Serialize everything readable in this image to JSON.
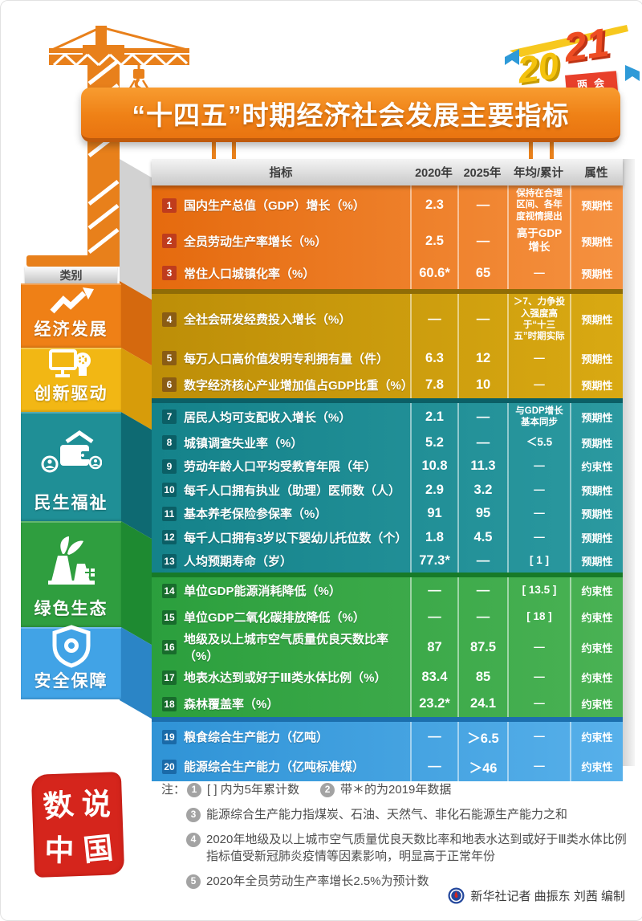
{
  "logo": {
    "year_first": "20",
    "year_second": "21",
    "badge": "两会"
  },
  "banner": {
    "title": "“十四五”时期经济社会发展主要指标"
  },
  "sidebar": {
    "header": "类别",
    "categories": [
      {
        "label": "经济发展",
        "icon": "trend-up-icon",
        "color": "#ef8016",
        "flap": "#d5690e"
      },
      {
        "label": "创新驱动",
        "icon": "innovation-icon",
        "color": "#f2b714",
        "flap": "#d79c0a"
      },
      {
        "label": "民生福祉",
        "icon": "wallet-people-icon",
        "color": "#1f8f96",
        "flap": "#0e6a72"
      },
      {
        "label": "绿色生态",
        "icon": "eco-plant-icon",
        "color": "#2f9e3f",
        "flap": "#1e8a31"
      },
      {
        "label": "安全保障",
        "icon": "shield-icon",
        "color": "#41a3e6",
        "flap": "#2b85c6"
      }
    ]
  },
  "table": {
    "headers": [
      "指标",
      "2020年",
      "2025年",
      "年均/累计",
      "属性"
    ],
    "groups": [
      {
        "key": "economic",
        "category": "经济发展",
        "colors": {
          "from": "#e56a0e",
          "to": "#f59140",
          "dark": "#b5520a",
          "badge": "#bf3c1d"
        },
        "rows": [
          {
            "num": "1",
            "label": "国内生产总值（GDP）增长（%）",
            "v2020": "2.3",
            "v2025": "—",
            "annual": "保持在合理区间、各年度视情提出",
            "attr": "预期性"
          },
          {
            "num": "2",
            "label": "全员劳动生产率增长（%）",
            "v2020": "2.5",
            "v2025": "—",
            "annual": "高于GDP增长",
            "attr": "预期性"
          },
          {
            "num": "3",
            "label": "常住人口城镇化率（%）",
            "v2020": "60.6*",
            "v2025": "65",
            "annual": "—",
            "attr": "预期性"
          }
        ]
      },
      {
        "key": "innovation",
        "category": "创新驱动",
        "colors": {
          "from": "#bd8e08",
          "to": "#d9a912",
          "dark": "#8f6c06",
          "badge": "#8a5c14"
        },
        "rows": [
          {
            "num": "4",
            "label": "全社会研发经费投入增长（%）",
            "v2020": "—",
            "v2025": "—",
            "annual": "＞7、力争投入强度高于“十三五”时期实际",
            "attr": "预期性"
          },
          {
            "num": "5",
            "label": "每万人口高价值发明专利拥有量（件）",
            "v2020": "6.3",
            "v2025": "12",
            "annual": "—",
            "attr": "预期性"
          },
          {
            "num": "6",
            "label": "数字经济核心产业增加值占GDP比重（%）",
            "v2020": "7.8",
            "v2025": "10",
            "annual": "—",
            "attr": "预期性"
          }
        ]
      },
      {
        "key": "livelihood",
        "category": "民生福祉",
        "colors": {
          "from": "#14828a",
          "to": "#2b99a0",
          "dark": "#0b5f66",
          "badge": "#0b5f66"
        },
        "rows": [
          {
            "num": "7",
            "label": "居民人均可支配收入增长（%）",
            "v2020": "2.1",
            "v2025": "—",
            "annual": "与GDP增长基本同步",
            "attr": "预期性"
          },
          {
            "num": "8",
            "label": "城镇调查失业率（%）",
            "v2020": "5.2",
            "v2025": "—",
            "annual": "＜5.5",
            "attr": "预期性"
          },
          {
            "num": "9",
            "label": "劳动年龄人口平均受教育年限（年）",
            "v2020": "10.8",
            "v2025": "11.3",
            "annual": "—",
            "attr": "约束性"
          },
          {
            "num": "10",
            "label": "每千人口拥有执业（助理）医师数（人）",
            "v2020": "2.9",
            "v2025": "3.2",
            "annual": "—",
            "attr": "预期性"
          },
          {
            "num": "11",
            "label": "基本养老保险参保率（%）",
            "v2020": "91",
            "v2025": "95",
            "annual": "—",
            "attr": "预期性"
          },
          {
            "num": "12",
            "label": "每千人口拥有3岁以下婴幼儿托位数（个）",
            "v2020": "1.8",
            "v2025": "4.5",
            "annual": "—",
            "attr": "预期性"
          },
          {
            "num": "13",
            "label": "人均预期寿命（岁）",
            "v2020": "77.3*",
            "v2025": "—",
            "annual": "[ 1 ]",
            "attr": "预期性"
          }
        ]
      },
      {
        "key": "ecology",
        "category": "绿色生态",
        "colors": {
          "from": "#2b9f3d",
          "to": "#4ab254",
          "dark": "#177a28",
          "badge": "#186c2c"
        },
        "rows": [
          {
            "num": "14",
            "label": "单位GDP能源消耗降低（%）",
            "v2020": "—",
            "v2025": "—",
            "annual": "[ 13.5 ]",
            "attr": "约束性"
          },
          {
            "num": "15",
            "label": "单位GDP二氧化碳排放降低（%）",
            "v2020": "—",
            "v2025": "—",
            "annual": "[ 18 ]",
            "attr": "约束性"
          },
          {
            "num": "16",
            "label": "地级及以上城市空气质量优良天数比率（%）",
            "v2020": "87",
            "v2025": "87.5",
            "annual": "—",
            "attr": "约束性"
          },
          {
            "num": "17",
            "label": "地表水达到或好于Ⅲ类水体比例（%）",
            "v2020": "83.4",
            "v2025": "85",
            "annual": "—",
            "attr": "约束性"
          },
          {
            "num": "18",
            "label": "森林覆盖率（%）",
            "v2020": "23.2*",
            "v2025": "24.1",
            "annual": "—",
            "attr": "约束性"
          }
        ]
      },
      {
        "key": "security",
        "category": "安全保障",
        "colors": {
          "from": "#2f93d6",
          "to": "#57b0ea",
          "dark": "#1c6fae",
          "badge": "#1a6aa8"
        },
        "rows": [
          {
            "num": "19",
            "label": "粮食综合生产能力（亿吨）",
            "v2020": "—",
            "v2025": "＞6.5",
            "annual": "—",
            "attr": "约束性"
          },
          {
            "num": "20",
            "label": "能源综合生产能力（亿吨标准煤）",
            "v2020": "—",
            "v2025": "＞46",
            "annual": "—",
            "attr": "约束性"
          }
        ]
      }
    ]
  },
  "notes": {
    "prefix": "注：",
    "items": [
      {
        "num": "1",
        "text": "[ ] 内为5年累计数"
      },
      {
        "num": "2",
        "text": "带＊的为2019年数据"
      },
      {
        "num": "3",
        "text": "能源综合生产能力指煤炭、石油、天然气、非化石能源生产能力之和"
      },
      {
        "num": "4",
        "text": "2020年地级及以上城市空气质量优良天数比率和地表水达到或好于Ⅲ类水体比例指标值受新冠肺炎疫情等因素影响，明显高于正常年份"
      },
      {
        "num": "5",
        "text": "2020年全员劳动生产率增长2.5%为预计数"
      }
    ]
  },
  "stamp": {
    "chars": [
      "数",
      "说",
      "中",
      "国"
    ]
  },
  "credit": {
    "text": "新华社记者 曲振东 刘茜 编制"
  },
  "chart_data": {
    "type": "table",
    "title": "“十四五”时期经济社会发展主要指标",
    "columns": [
      "指标",
      "2020年",
      "2025年",
      "年均/累计",
      "属性"
    ],
    "rows": [
      [
        "经济发展",
        1,
        "国内生产总值（GDP）增长（%）",
        "2.3",
        null,
        "保持在合理区间、各年度视情提出",
        "预期性"
      ],
      [
        "经济发展",
        2,
        "全员劳动生产率增长（%）",
        "2.5",
        null,
        "高于GDP增长",
        "预期性"
      ],
      [
        "经济发展",
        3,
        "常住人口城镇化率（%）",
        "60.6*",
        "65",
        null,
        "预期性"
      ],
      [
        "创新驱动",
        4,
        "全社会研发经费投入增长（%）",
        null,
        null,
        ">7、力争投入强度高于“十三五”时期实际",
        "预期性"
      ],
      [
        "创新驱动",
        5,
        "每万人口高价值发明专利拥有量（件）",
        "6.3",
        "12",
        null,
        "预期性"
      ],
      [
        "创新驱动",
        6,
        "数字经济核心产业增加值占GDP比重（%）",
        "7.8",
        "10",
        null,
        "预期性"
      ],
      [
        "民生福祉",
        7,
        "居民人均可支配收入增长（%）",
        "2.1",
        null,
        "与GDP增长基本同步",
        "预期性"
      ],
      [
        "民生福祉",
        8,
        "城镇调查失业率（%）",
        "5.2",
        null,
        "<5.5",
        "预期性"
      ],
      [
        "民生福祉",
        9,
        "劳动年龄人口平均受教育年限（年）",
        "10.8",
        "11.3",
        null,
        "约束性"
      ],
      [
        "民生福祉",
        10,
        "每千人口拥有执业（助理）医师数（人）",
        "2.9",
        "3.2",
        null,
        "预期性"
      ],
      [
        "民生福祉",
        11,
        "基本养老保险参保率（%）",
        "91",
        "95",
        null,
        "预期性"
      ],
      [
        "民生福祉",
        12,
        "每千人口拥有3岁以下婴幼儿托位数（个）",
        "1.8",
        "4.5",
        null,
        "预期性"
      ],
      [
        "民生福祉",
        13,
        "人均预期寿命（岁）",
        "77.3*",
        null,
        "[1]",
        "预期性"
      ],
      [
        "绿色生态",
        14,
        "单位GDP能源消耗降低（%）",
        null,
        null,
        "[13.5]",
        "约束性"
      ],
      [
        "绿色生态",
        15,
        "单位GDP二氧化碳排放降低（%）",
        null,
        null,
        "[18]",
        "约束性"
      ],
      [
        "绿色生态",
        16,
        "地级及以上城市空气质量优良天数比率（%）",
        "87",
        "87.5",
        null,
        "约束性"
      ],
      [
        "绿色生态",
        17,
        "地表水达到或好于Ⅲ类水体比例（%）",
        "83.4",
        "85",
        null,
        "约束性"
      ],
      [
        "绿色生态",
        18,
        "森林覆盖率（%）",
        "23.2*",
        "24.1",
        null,
        "约束性"
      ],
      [
        "安全保障",
        19,
        "粮食综合生产能力（亿吨）",
        null,
        ">6.5",
        null,
        "约束性"
      ],
      [
        "安全保障",
        20,
        "能源综合生产能力（亿吨标准煤）",
        null,
        ">46",
        null,
        "约束性"
      ]
    ]
  }
}
